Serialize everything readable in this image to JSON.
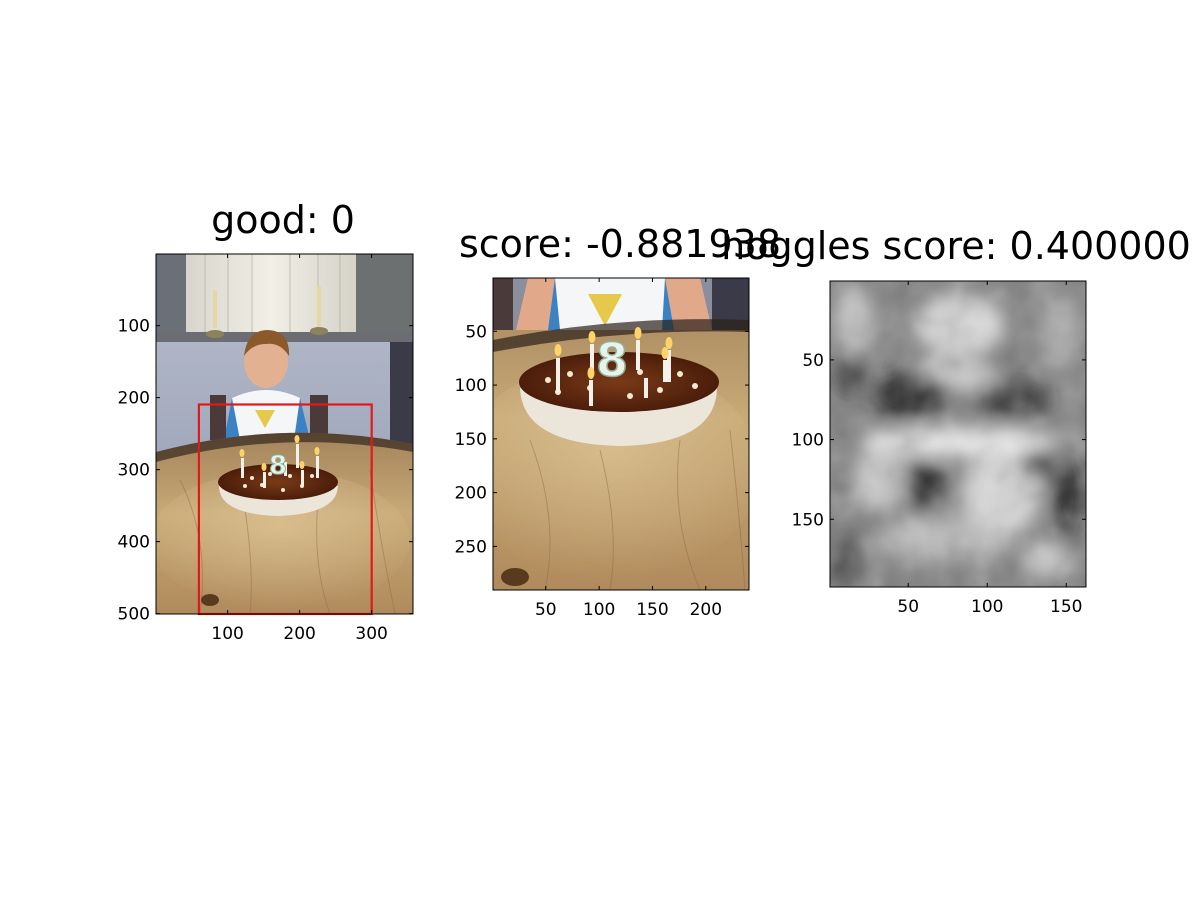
{
  "chart_data": [
    {
      "type": "image",
      "title": "good: 0",
      "xlim": [
        0.5,
        357.5
      ],
      "ylim": [
        0.5,
        500.5
      ],
      "y_reversed": true,
      "xticks": [
        100,
        200,
        300
      ],
      "yticks": [
        100,
        200,
        300,
        400,
        500
      ],
      "xticklabels": [
        "100",
        "200",
        "300"
      ],
      "yticklabels": [
        "100",
        "200",
        "300",
        "400",
        "500"
      ],
      "annotations": [
        {
          "type": "rectangle",
          "color": "#e0191b",
          "x0": 60,
          "x1": 300,
          "y0": 210,
          "y1": 500
        }
      ]
    },
    {
      "type": "image",
      "title": "score: -0.881938",
      "xlim": [
        0.5,
        240.5
      ],
      "ylim": [
        0.5,
        290.5
      ],
      "y_reversed": true,
      "xticks": [
        50,
        100,
        150,
        200
      ],
      "yticks": [
        50,
        100,
        150,
        200,
        250
      ],
      "xticklabels": [
        "50",
        "100",
        "150",
        "200"
      ],
      "yticklabels": [
        "50",
        "100",
        "150",
        "200",
        "250"
      ]
    },
    {
      "type": "heatmap",
      "colormap": "gray",
      "title": "hoggles score: 0.400000",
      "xlim": [
        0.5,
        162.5
      ],
      "ylim": [
        0.5,
        192.5
      ],
      "y_reversed": true,
      "xticks": [
        50,
        100,
        150
      ],
      "yticks": [
        50,
        100,
        150
      ],
      "xticklabels": [
        "50",
        "100",
        "150"
      ],
      "yticklabels": [
        "50",
        "100",
        "150"
      ]
    }
  ]
}
